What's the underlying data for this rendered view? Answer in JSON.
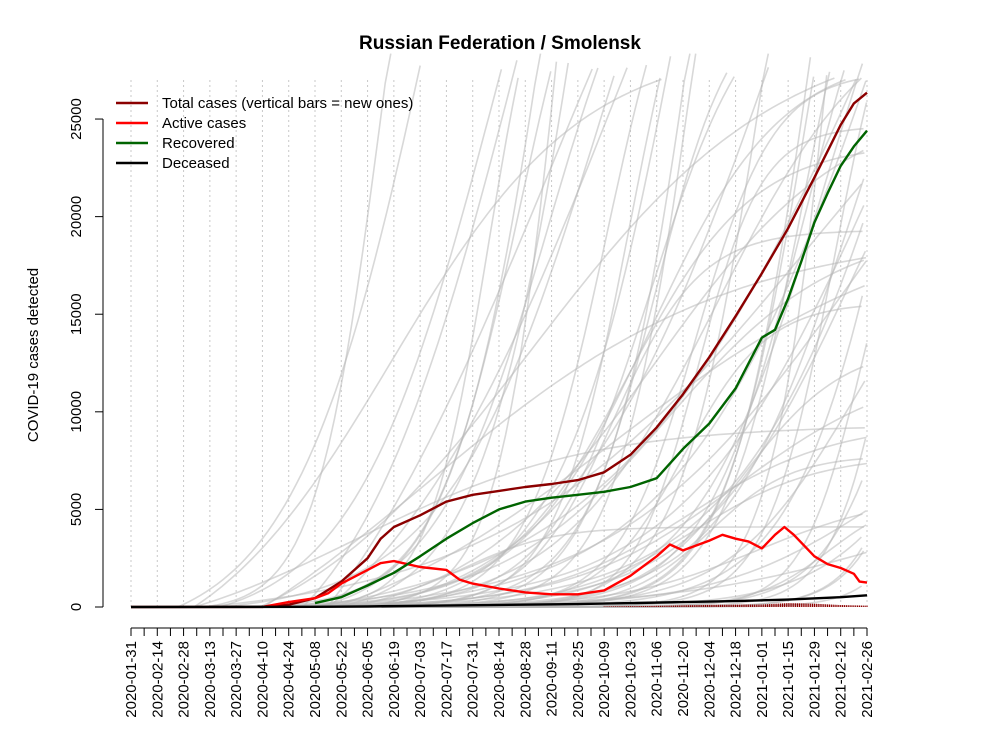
{
  "chart_data": {
    "type": "line",
    "title": "Russian Federation / Smolensk",
    "ylabel": "COVID-19 cases detected",
    "xlabel": "",
    "ylim": [
      0,
      27000
    ],
    "x_range": [
      "2020-01-31",
      "2021-02-26"
    ],
    "y_ticks": [
      0,
      5000,
      10000,
      15000,
      20000,
      25000
    ],
    "x_ticks": [
      "2020-01-31",
      "2020-02-14",
      "2020-02-28",
      "2020-03-13",
      "2020-03-27",
      "2020-04-10",
      "2020-04-24",
      "2020-05-08",
      "2020-05-22",
      "2020-06-05",
      "2020-06-19",
      "2020-07-03",
      "2020-07-17",
      "2020-07-31",
      "2020-08-14",
      "2020-08-28",
      "2020-09-11",
      "2020-09-25",
      "2020-10-09",
      "2020-10-23",
      "2020-11-06",
      "2020-11-20",
      "2020-12-04",
      "2020-12-18",
      "2021-01-01",
      "2021-01-15",
      "2021-01-29",
      "2021-02-12",
      "2021-02-26"
    ],
    "legend": {
      "placement": "top-left",
      "entries": [
        "Total cases (vertical bars = new ones)",
        "Active cases",
        "Recovered",
        "Deceased"
      ]
    },
    "colors": {
      "total": "#8b0000",
      "active": "#ff0000",
      "recovered": "#006400",
      "deceased": "#000000",
      "background_regions": "#b8b8b8",
      "grid": "#c8c8c8"
    },
    "series": [
      {
        "name": "Total cases (vertical bars = new ones)",
        "points": [
          [
            "2020-01-31",
            0
          ],
          [
            "2020-04-10",
            5
          ],
          [
            "2020-04-24",
            120
          ],
          [
            "2020-05-08",
            450
          ],
          [
            "2020-05-22",
            1300
          ],
          [
            "2020-06-05",
            2500
          ],
          [
            "2020-06-12",
            3500
          ],
          [
            "2020-06-19",
            4100
          ],
          [
            "2020-07-03",
            4700
          ],
          [
            "2020-07-17",
            5400
          ],
          [
            "2020-07-31",
            5750
          ],
          [
            "2020-08-14",
            5950
          ],
          [
            "2020-08-28",
            6150
          ],
          [
            "2020-09-11",
            6300
          ],
          [
            "2020-09-25",
            6500
          ],
          [
            "2020-10-09",
            6900
          ],
          [
            "2020-10-23",
            7800
          ],
          [
            "2020-11-06",
            9200
          ],
          [
            "2020-11-20",
            10900
          ],
          [
            "2020-12-04",
            12800
          ],
          [
            "2020-12-18",
            14900
          ],
          [
            "2021-01-01",
            17100
          ],
          [
            "2021-01-15",
            19400
          ],
          [
            "2021-01-29",
            22000
          ],
          [
            "2021-02-12",
            24700
          ],
          [
            "2021-02-19",
            25800
          ],
          [
            "2021-02-26",
            26350
          ]
        ]
      },
      {
        "name": "Active cases",
        "points": [
          [
            "2020-04-10",
            5
          ],
          [
            "2020-04-24",
            250
          ],
          [
            "2020-05-08",
            450
          ],
          [
            "2020-05-15",
            700
          ],
          [
            "2020-05-22",
            1200
          ],
          [
            "2020-06-05",
            1900
          ],
          [
            "2020-06-12",
            2250
          ],
          [
            "2020-06-19",
            2350
          ],
          [
            "2020-06-26",
            2200
          ],
          [
            "2020-07-03",
            2050
          ],
          [
            "2020-07-17",
            1900
          ],
          [
            "2020-07-24",
            1400
          ],
          [
            "2020-07-31",
            1200
          ],
          [
            "2020-08-14",
            950
          ],
          [
            "2020-08-28",
            750
          ],
          [
            "2020-09-11",
            650
          ],
          [
            "2020-09-25",
            650
          ],
          [
            "2020-10-09",
            850
          ],
          [
            "2020-10-23",
            1600
          ],
          [
            "2020-11-06",
            2600
          ],
          [
            "2020-11-13",
            3200
          ],
          [
            "2020-11-20",
            2900
          ],
          [
            "2020-12-04",
            3400
          ],
          [
            "2020-12-11",
            3700
          ],
          [
            "2020-12-18",
            3500
          ],
          [
            "2020-12-25",
            3350
          ],
          [
            "2021-01-01",
            3000
          ],
          [
            "2021-01-08",
            3700
          ],
          [
            "2021-01-13",
            4100
          ],
          [
            "2021-01-18",
            3700
          ],
          [
            "2021-01-29",
            2600
          ],
          [
            "2021-02-05",
            2200
          ],
          [
            "2021-02-12",
            2000
          ],
          [
            "2021-02-19",
            1700
          ],
          [
            "2021-02-22",
            1300
          ],
          [
            "2021-02-26",
            1250
          ]
        ]
      },
      {
        "name": "Recovered",
        "points": [
          [
            "2020-05-08",
            200
          ],
          [
            "2020-05-22",
            500
          ],
          [
            "2020-06-05",
            1100
          ],
          [
            "2020-06-19",
            1750
          ],
          [
            "2020-07-03",
            2600
          ],
          [
            "2020-07-17",
            3500
          ],
          [
            "2020-07-31",
            4300
          ],
          [
            "2020-08-14",
            5000
          ],
          [
            "2020-08-28",
            5400
          ],
          [
            "2020-09-11",
            5600
          ],
          [
            "2020-09-25",
            5750
          ],
          [
            "2020-10-09",
            5900
          ],
          [
            "2020-10-23",
            6150
          ],
          [
            "2020-11-06",
            6600
          ],
          [
            "2020-11-20",
            8100
          ],
          [
            "2020-12-04",
            9400
          ],
          [
            "2020-12-18",
            11200
          ],
          [
            "2021-01-01",
            13800
          ],
          [
            "2021-01-08",
            14200
          ],
          [
            "2021-01-15",
            15800
          ],
          [
            "2021-01-22",
            17700
          ],
          [
            "2021-01-29",
            19700
          ],
          [
            "2021-02-05",
            21200
          ],
          [
            "2021-02-12",
            22600
          ],
          [
            "2021-02-19",
            23600
          ],
          [
            "2021-02-26",
            24400
          ]
        ]
      },
      {
        "name": "Deceased",
        "points": [
          [
            "2020-01-31",
            0
          ],
          [
            "2020-05-08",
            10
          ],
          [
            "2020-06-05",
            30
          ],
          [
            "2020-07-03",
            60
          ],
          [
            "2020-08-14",
            110
          ],
          [
            "2020-09-25",
            150
          ],
          [
            "2020-10-23",
            200
          ],
          [
            "2020-11-20",
            250
          ],
          [
            "2020-12-18",
            300
          ],
          [
            "2021-01-15",
            380
          ],
          [
            "2021-02-12",
            500
          ],
          [
            "2021-02-26",
            600
          ]
        ]
      },
      {
        "name": "",
        "role": "new cases (daily)",
        "points": [
          [
            "2020-10-09",
            30
          ],
          [
            "2020-11-06",
            60
          ],
          [
            "2020-12-04",
            110
          ],
          [
            "2021-01-01",
            130
          ],
          [
            "2021-01-15",
            200
          ],
          [
            "2021-01-29",
            170
          ],
          [
            "2021-02-12",
            100
          ],
          [
            "2021-02-26",
            70
          ]
        ]
      }
    ]
  }
}
